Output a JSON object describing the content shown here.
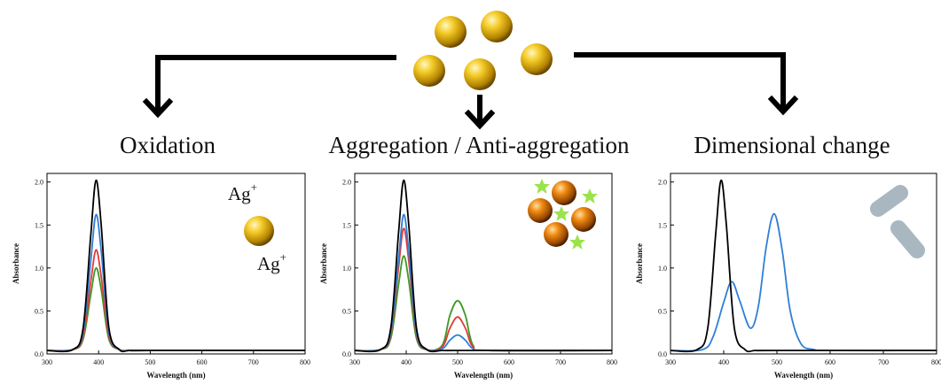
{
  "titles": {
    "left": "Oxidation",
    "middle": "Aggregation / Anti-aggregation",
    "right": "Dimensional change"
  },
  "ions": {
    "symbol": "Ag",
    "charge": "+"
  },
  "colors": {
    "black": "#000000",
    "blue": "#2f7fd6",
    "red": "#e23a3a",
    "green": "#3c9a25",
    "gold": "#f2c21a",
    "orange": "#e07a10",
    "star": "#9be34d",
    "rod": "#a9b7c0"
  },
  "chart_data": [
    {
      "type": "line",
      "xlabel": "Wavelength (nm)",
      "ylabel": "Absorbance",
      "xlim": [
        300,
        800
      ],
      "ylim": [
        0,
        2.1
      ],
      "xticks": [
        300,
        400,
        500,
        600,
        700,
        800
      ],
      "yticks": [
        0.0,
        0.5,
        1.0,
        1.5,
        2.0
      ],
      "series": [
        {
          "color": "#000000",
          "x": [
            300,
            350,
            370,
            385,
            395,
            405,
            420,
            440,
            460,
            500,
            800
          ],
          "y": [
            0.04,
            0.05,
            0.3,
            1.4,
            2.02,
            1.5,
            0.3,
            0.05,
            0.04,
            0.04,
            0.04
          ]
        },
        {
          "color": "#2f7fd6",
          "x": [
            300,
            350,
            370,
            385,
            395,
            405,
            420,
            440,
            460,
            500,
            800
          ],
          "y": [
            0.04,
            0.05,
            0.25,
            1.1,
            1.62,
            1.2,
            0.25,
            0.05,
            0.04,
            0.04,
            0.04
          ]
        },
        {
          "color": "#e23a3a",
          "x": [
            300,
            350,
            370,
            385,
            395,
            405,
            420,
            440,
            460,
            500,
            800
          ],
          "y": [
            0.04,
            0.05,
            0.2,
            0.85,
            1.21,
            0.9,
            0.2,
            0.05,
            0.04,
            0.04,
            0.04
          ]
        },
        {
          "color": "#3c9a25",
          "x": [
            300,
            350,
            370,
            385,
            395,
            405,
            420,
            440,
            460,
            500,
            800
          ],
          "y": [
            0.04,
            0.05,
            0.17,
            0.7,
            1.0,
            0.75,
            0.17,
            0.05,
            0.04,
            0.04,
            0.04
          ]
        }
      ]
    },
    {
      "type": "line",
      "xlabel": "Wavelength (nm)",
      "ylabel": "Absorbance",
      "xlim": [
        300,
        800
      ],
      "ylim": [
        0,
        2.1
      ],
      "xticks": [
        300,
        400,
        500,
        600,
        700,
        800
      ],
      "yticks": [
        0.0,
        0.5,
        1.0,
        1.5,
        2.0
      ],
      "series": [
        {
          "color": "#000000",
          "x": [
            300,
            350,
            370,
            385,
            395,
            405,
            420,
            440,
            470,
            500,
            530,
            560,
            800
          ],
          "y": [
            0.04,
            0.05,
            0.3,
            1.4,
            2.02,
            1.5,
            0.3,
            0.05,
            0.04,
            0.04,
            0.04,
            0.04,
            0.04
          ]
        },
        {
          "color": "#2f7fd6",
          "x": [
            300,
            350,
            370,
            385,
            395,
            405,
            420,
            440,
            470,
            485,
            500,
            515,
            530,
            560,
            800
          ],
          "y": [
            0.04,
            0.05,
            0.25,
            1.1,
            1.62,
            1.2,
            0.25,
            0.05,
            0.06,
            0.16,
            0.22,
            0.16,
            0.06,
            0.04,
            0.04
          ]
        },
        {
          "color": "#e23a3a",
          "x": [
            300,
            350,
            370,
            385,
            395,
            405,
            420,
            440,
            470,
            485,
            500,
            515,
            530,
            560,
            800
          ],
          "y": [
            0.04,
            0.05,
            0.22,
            1.0,
            1.46,
            1.08,
            0.22,
            0.05,
            0.08,
            0.3,
            0.43,
            0.3,
            0.08,
            0.04,
            0.04
          ]
        },
        {
          "color": "#3c9a25",
          "x": [
            300,
            350,
            370,
            385,
            395,
            405,
            420,
            440,
            470,
            485,
            500,
            515,
            530,
            560,
            800
          ],
          "y": [
            0.04,
            0.05,
            0.18,
            0.8,
            1.14,
            0.85,
            0.18,
            0.05,
            0.1,
            0.45,
            0.62,
            0.45,
            0.1,
            0.04,
            0.04
          ]
        }
      ]
    },
    {
      "type": "line",
      "xlabel": "Wavelength (nm)",
      "ylabel": "Absorbance",
      "xlim": [
        300,
        800
      ],
      "ylim": [
        0,
        2.1
      ],
      "xticks": [
        300,
        400,
        500,
        600,
        700,
        800
      ],
      "yticks": [
        0.0,
        0.5,
        1.0,
        1.5,
        2.0
      ],
      "series": [
        {
          "color": "#000000",
          "x": [
            300,
            350,
            370,
            385,
            395,
            405,
            420,
            440,
            460,
            500,
            800
          ],
          "y": [
            0.04,
            0.05,
            0.3,
            1.4,
            2.02,
            1.5,
            0.3,
            0.05,
            0.04,
            0.04,
            0.04
          ]
        },
        {
          "color": "#2f7fd6",
          "x": [
            300,
            360,
            380,
            400,
            415,
            430,
            450,
            465,
            480,
            495,
            510,
            525,
            545,
            570,
            600,
            800
          ],
          "y": [
            0.04,
            0.05,
            0.2,
            0.6,
            0.84,
            0.62,
            0.3,
            0.55,
            1.25,
            1.63,
            1.2,
            0.5,
            0.12,
            0.05,
            0.04,
            0.04
          ]
        }
      ]
    }
  ]
}
